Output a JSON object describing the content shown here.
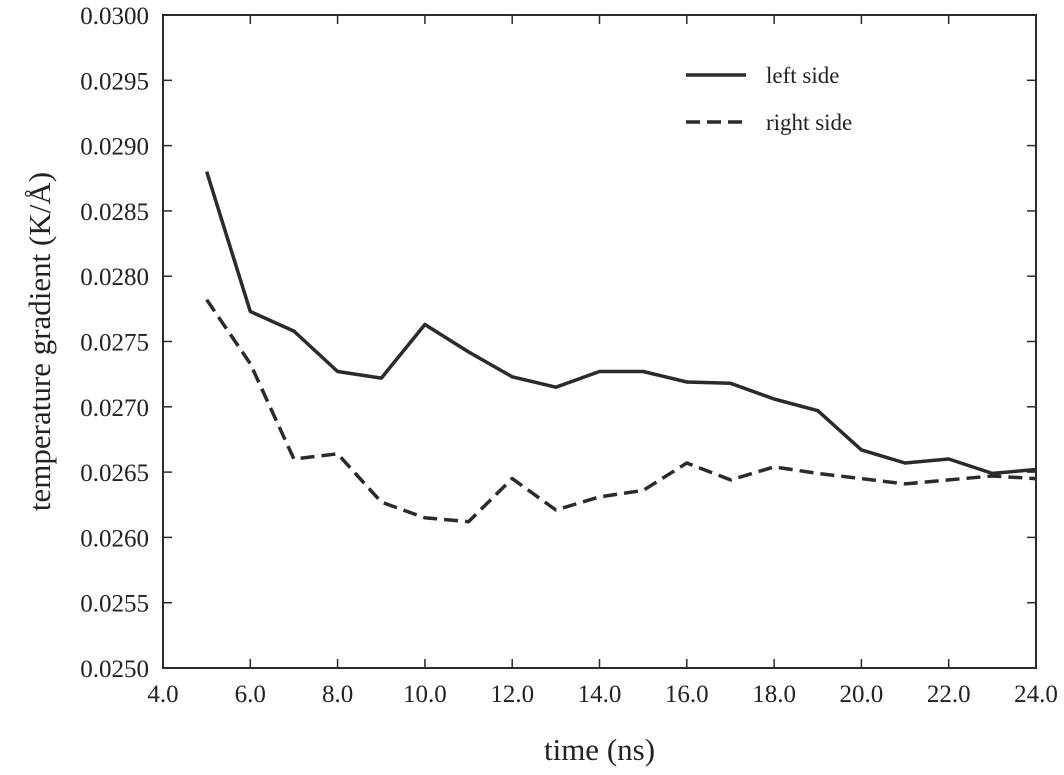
{
  "chart_data": {
    "type": "line",
    "title": "",
    "xlabel": "time (ns)",
    "ylabel": "temperature gradient (K/Å)",
    "xlim": [
      4.0,
      24.0
    ],
    "ylim": [
      0.025,
      0.03
    ],
    "x_ticks": [
      "4.0",
      "6.0",
      "8.0",
      "10.0",
      "12.0",
      "14.0",
      "16.0",
      "18.0",
      "20.0",
      "22.0",
      "24.0"
    ],
    "y_ticks": [
      "0.0250",
      "0.0255",
      "0.0260",
      "0.0265",
      "0.0270",
      "0.0275",
      "0.0280",
      "0.0285",
      "0.0290",
      "0.0295",
      "0.0300"
    ],
    "grid": false,
    "legend_position": "top-right",
    "x": [
      5,
      6,
      7,
      8,
      9,
      10,
      11,
      12,
      13,
      14,
      15,
      16,
      17,
      18,
      19,
      20,
      21,
      22,
      23,
      24
    ],
    "series": [
      {
        "name": "left side",
        "style": "solid",
        "color": "#2b2b2b",
        "values": [
          0.0288,
          0.02773,
          0.02758,
          0.02727,
          0.02722,
          0.02763,
          0.02742,
          0.02723,
          0.02715,
          0.02727,
          0.02727,
          0.02719,
          0.02718,
          0.02706,
          0.02697,
          0.02667,
          0.02657,
          0.0266,
          0.02649,
          0.02652
        ]
      },
      {
        "name": "right side",
        "style": "dashed",
        "color": "#2b2b2b",
        "values": [
          0.02782,
          0.02733,
          0.0266,
          0.02664,
          0.02627,
          0.02615,
          0.02612,
          0.02645,
          0.02621,
          0.02631,
          0.02636,
          0.02657,
          0.02644,
          0.02654,
          0.02649,
          0.02645,
          0.02641,
          0.02644,
          0.02647,
          0.02645
        ]
      }
    ]
  }
}
